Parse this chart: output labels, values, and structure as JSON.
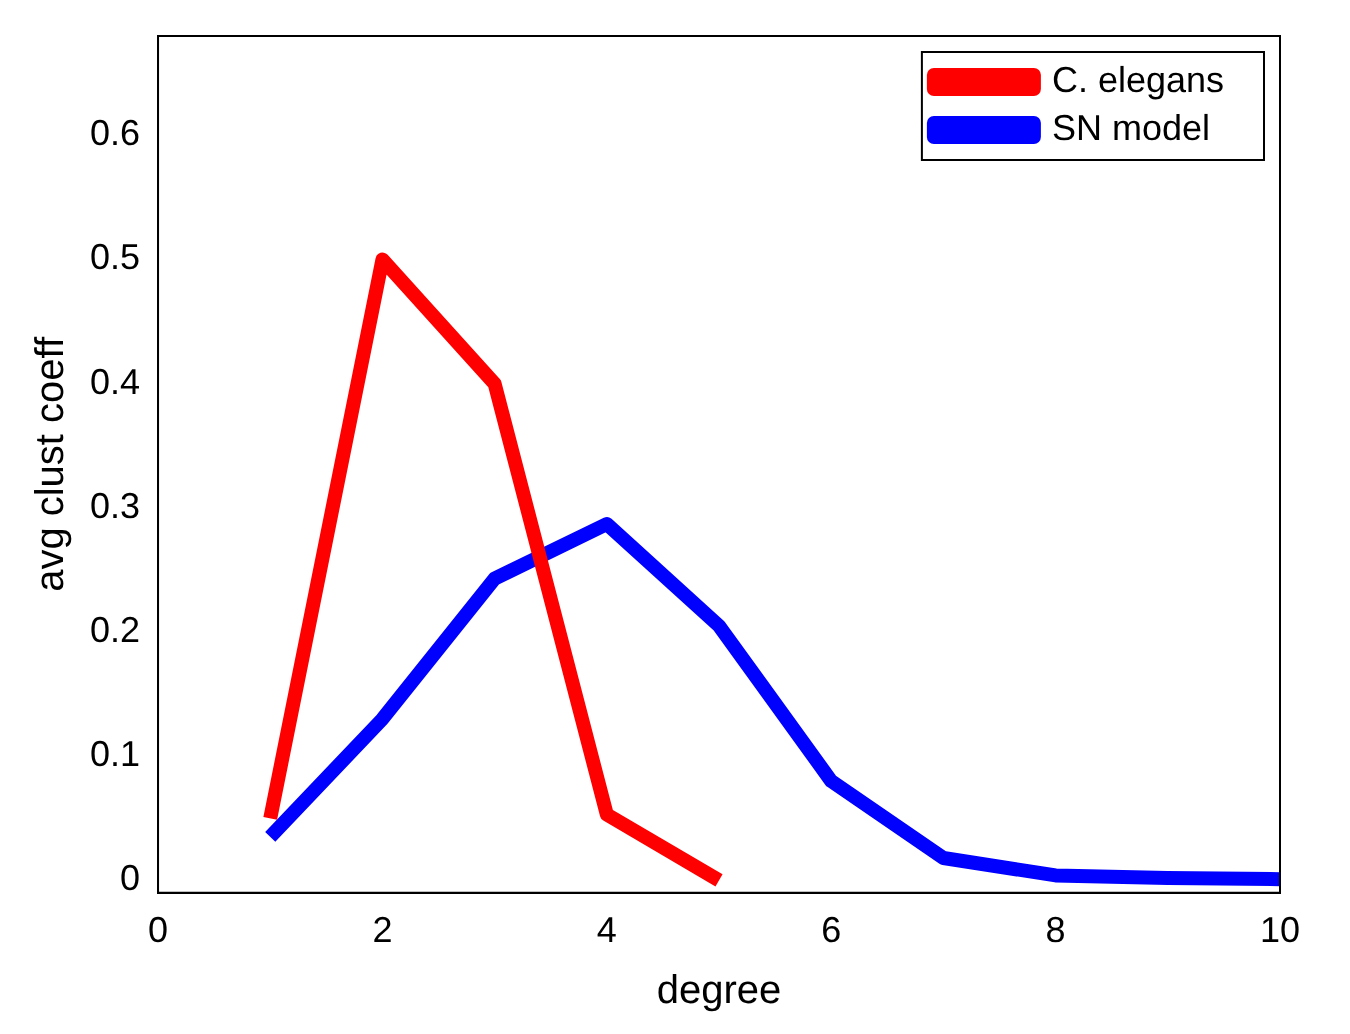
{
  "chart_data": {
    "type": "line",
    "xlabel": "degree",
    "ylabel": "avg clust coeff",
    "xlim": [
      0,
      10
    ],
    "xticks": [
      0,
      2,
      4,
      6,
      8,
      10
    ],
    "ylim": [
      -0.01,
      0.68
    ],
    "yticks": [
      0,
      0.1,
      0.2,
      0.3,
      0.4,
      0.5,
      0.6
    ],
    "grid": false,
    "legend": "top right",
    "marker": "none",
    "line_style": "solid",
    "series": [
      {
        "name": "C. elegans",
        "color": "#ff0000",
        "x": [
          1,
          2,
          3,
          4,
          5
        ],
        "values": [
          0.05,
          0.5,
          0.4,
          0.053,
          0
        ]
      },
      {
        "name": "SN model",
        "color": "#0000ff",
        "x": [
          1,
          2,
          3,
          4,
          5,
          6,
          7,
          8,
          9,
          10
        ],
        "values": [
          0.035,
          0.13,
          0.243,
          0.287,
          0.205,
          0.08,
          0.018,
          0.004,
          0.002,
          0.001
        ]
      }
    ]
  }
}
